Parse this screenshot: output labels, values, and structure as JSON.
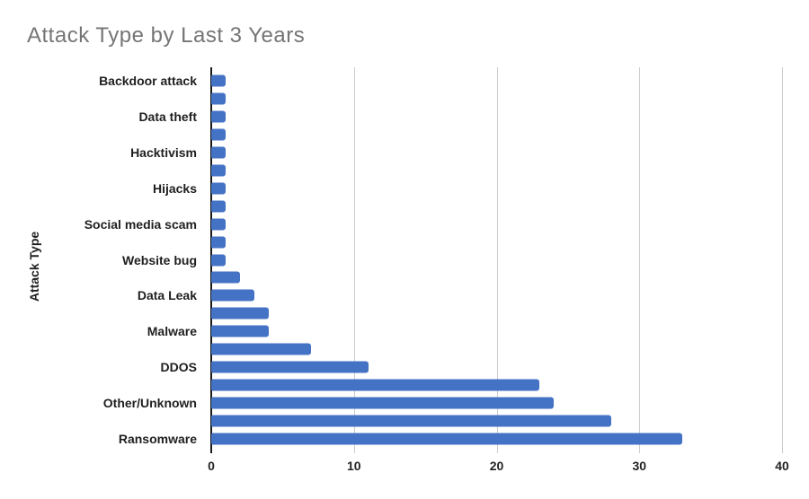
{
  "chart_data": {
    "type": "bar",
    "orientation": "horizontal",
    "title": "Attack Type by Last 3 Years",
    "xlabel": "",
    "ylabel": "Attack Type",
    "xlim": [
      0,
      40
    ],
    "xticks": [
      0,
      10,
      20,
      30,
      40
    ],
    "grid": "vertical-only",
    "legend": "none",
    "note": "Axis shows labels for every other bar; unlabeled bars sit between labeled categories.",
    "bars": [
      {
        "label": "Backdoor attack",
        "value": 1
      },
      {
        "label": "",
        "value": 1
      },
      {
        "label": "Data theft",
        "value": 1
      },
      {
        "label": "",
        "value": 1
      },
      {
        "label": "Hacktivism",
        "value": 1
      },
      {
        "label": "",
        "value": 1
      },
      {
        "label": "Hijacks",
        "value": 1
      },
      {
        "label": "",
        "value": 1
      },
      {
        "label": "Social media scam",
        "value": 1
      },
      {
        "label": "",
        "value": 1
      },
      {
        "label": "Website bug",
        "value": 1
      },
      {
        "label": "",
        "value": 2
      },
      {
        "label": "Data Leak",
        "value": 3
      },
      {
        "label": "",
        "value": 4
      },
      {
        "label": "Malware",
        "value": 4
      },
      {
        "label": "",
        "value": 7
      },
      {
        "label": "DDOS",
        "value": 11
      },
      {
        "label": "",
        "value": 23
      },
      {
        "label": "Other/Unknown",
        "value": 24
      },
      {
        "label": "",
        "value": 28
      },
      {
        "label": "Ransomware",
        "value": 33
      }
    ],
    "colors": {
      "bar": "#4472C4",
      "grid": "#cccccc",
      "axis": "#1a1a1a",
      "title": "#757575",
      "label": "#1f1f1f",
      "tick": "#222222"
    }
  }
}
